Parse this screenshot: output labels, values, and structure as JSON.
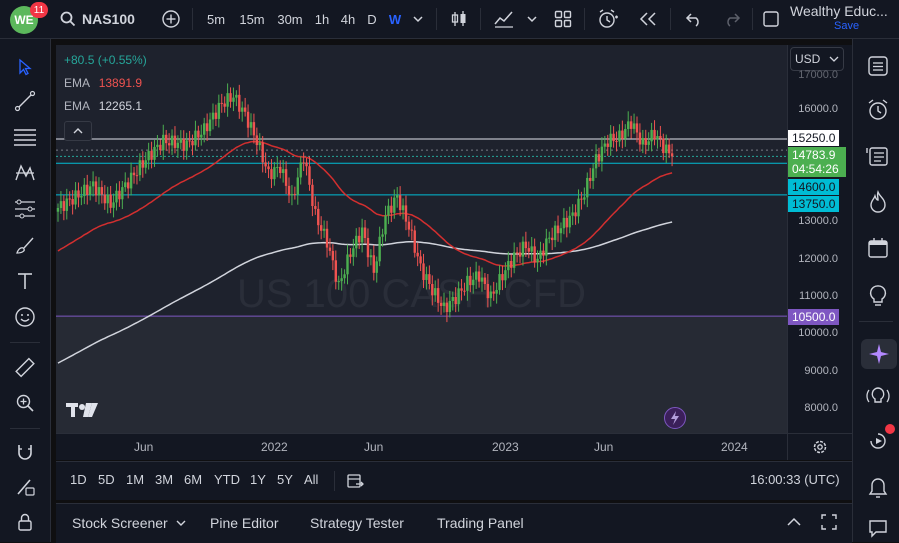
{
  "header": {
    "logo_text": "WE",
    "notifications": "11",
    "symbol": "NAS100",
    "intervals": [
      "5m",
      "15m",
      "30m",
      "1h",
      "4h",
      "D",
      "W"
    ],
    "active_interval": "W",
    "account_name": "Wealthy Educ...",
    "save_label": "Save"
  },
  "legend": {
    "change": "+80.5 (+0.55%)",
    "ema1_label": "EMA",
    "ema1_value": "13891.9",
    "ema2_label": "EMA",
    "ema2_value": "12265.1"
  },
  "watermark": "US 100 CASH CFD",
  "price_scale": {
    "currency": "USD",
    "ticks": [
      "16000.0",
      "15000.0",
      "13000.0",
      "12000.0",
      "11000.0",
      "10000.0",
      "9000.0",
      "8000.0"
    ],
    "top_partial": "17000.0"
  },
  "price_tags": {
    "level_15250": "15250.0",
    "last_price": "14783.9",
    "countdown": "04:54:26",
    "level_14600": "14600.0",
    "level_13750": "13750.0",
    "level_10500": "10500.0"
  },
  "time_axis": [
    "Jun",
    "2022",
    "Jun",
    "2023",
    "Jun",
    "2024"
  ],
  "ranges": [
    "1D",
    "5D",
    "1M",
    "3M",
    "6M",
    "YTD",
    "1Y",
    "5Y",
    "All"
  ],
  "clock": "16:00:33 (UTC)",
  "bottom_tabs": [
    "Stock Screener",
    "Pine Editor",
    "Strategy Tester",
    "Trading Panel"
  ],
  "colors": {
    "up": "#26a69a",
    "up_candle": "#4caf50",
    "down": "#ef5350",
    "ema_fast": "#d32f2f",
    "ema_slow": "#d1d4dc",
    "accent": "#2962ff",
    "cyan_level": "#00bcd4",
    "purple_level": "#7e57c2",
    "green_tag": "#4caf50"
  }
}
